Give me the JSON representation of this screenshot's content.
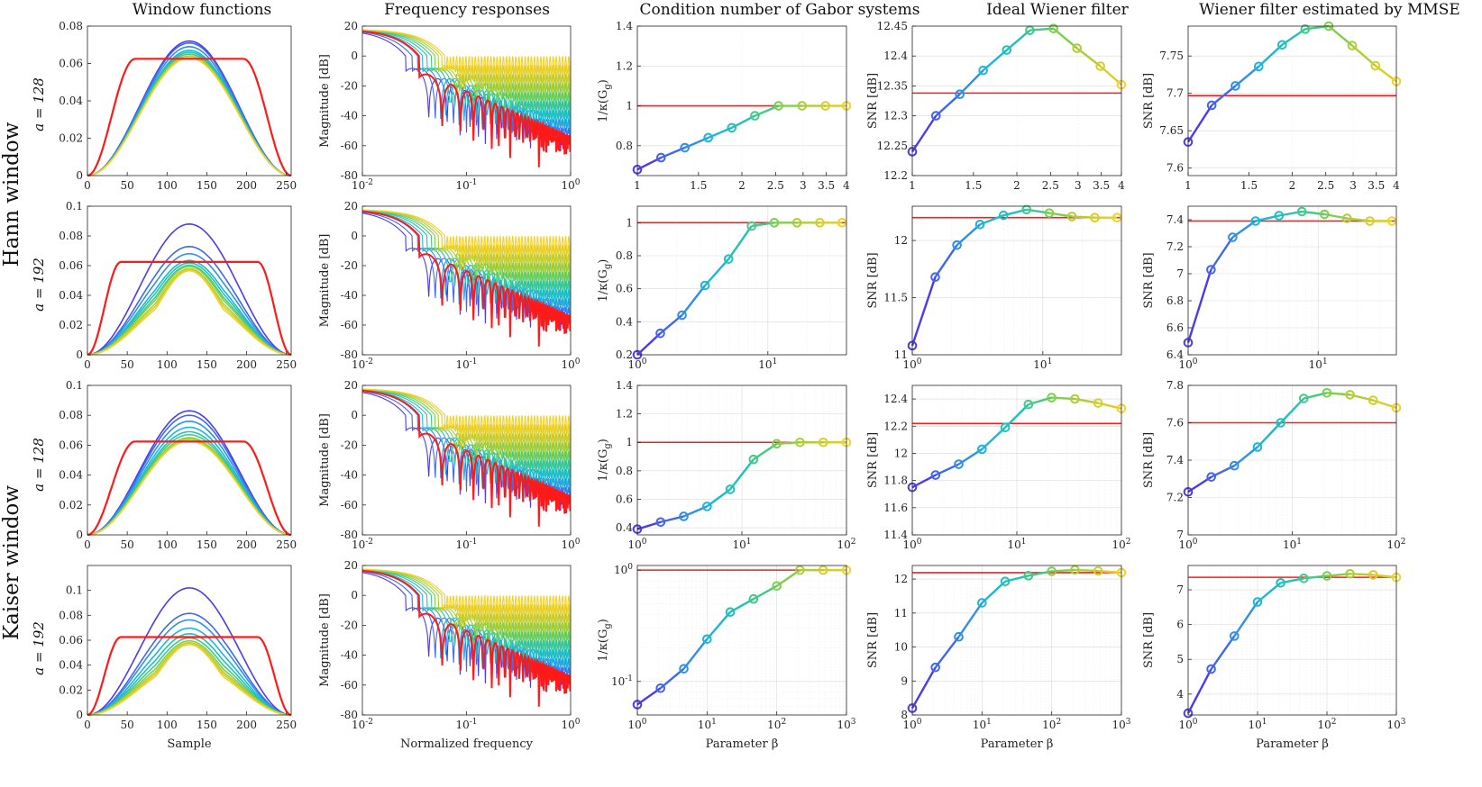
{
  "figure": {
    "column_titles": [
      "Window functions",
      "Frequency responses",
      "Condition number of Gabor systems",
      "Ideal Wiener filter",
      "Wiener filter estimated by MMSE"
    ],
    "group_labels": [
      "Hann window",
      "Kaiser window"
    ],
    "row_labels": [
      "a = 128",
      "a = 192",
      "a = 128",
      "a = 192"
    ],
    "xlabels": [
      "Sample",
      "Normalized frequency",
      "Parameter β",
      "Parameter β",
      "Parameter β"
    ],
    "ylabels": [
      "",
      "Magnitude [dB]",
      "1/κ(G_g)",
      "SNR [dB]",
      "SNR [dB]"
    ],
    "colors": {
      "red": "#ff1a1a",
      "gradient": [
        "#4b3ce8",
        "#3a7cf0",
        "#1ab8d8",
        "#27c6a6",
        "#7fcf4a",
        "#c9cc2e",
        "#f2d22a"
      ]
    }
  },
  "chart_data": [
    {
      "type": "line",
      "row": 0,
      "col": 0,
      "series_count": 10,
      "xlim": [
        0,
        256
      ],
      "ylim": [
        0,
        0.08
      ],
      "xticks": [
        0,
        50,
        100,
        150,
        200,
        250
      ],
      "yticks": [
        "0",
        "0.02",
        "0.04",
        "0.06",
        "0.08"
      ],
      "peak_values": [
        0.072,
        0.071,
        0.069,
        0.067,
        0.066,
        0.065,
        0.064,
        0.064,
        0.063,
        0.063
      ],
      "flat_value": 0.0625
    },
    {
      "type": "line",
      "row": 0,
      "col": 1,
      "xlim": [
        0.01,
        1
      ],
      "ylim": [
        -80,
        20
      ],
      "xticks": [
        "10^{-2}",
        "10^{-1}",
        "10^{0}"
      ],
      "yticks": [
        "-80",
        "-60",
        "-40",
        "-20",
        "0",
        "20"
      ]
    },
    {
      "type": "line",
      "row": 0,
      "col": 2,
      "xscale": "log",
      "xlim": [
        1,
        4
      ],
      "ylim": [
        0.65,
        1.4
      ],
      "xticks": [
        "1",
        "1.5",
        "2",
        "2.5",
        "3",
        "3.5",
        "4"
      ],
      "yticks": [
        "0.8",
        "1",
        "1.2",
        "1.4"
      ],
      "x": [
        1,
        1.17,
        1.37,
        1.6,
        1.87,
        2.18,
        2.55,
        2.98,
        3.48,
        4.0
      ],
      "y": [
        0.68,
        0.74,
        0.79,
        0.84,
        0.89,
        0.95,
        1.0,
        1.0,
        1.0,
        1.0
      ],
      "reference": 1.0
    },
    {
      "type": "line",
      "row": 0,
      "col": 3,
      "xscale": "log",
      "xlim": [
        1,
        4
      ],
      "ylim": [
        12.2,
        12.45
      ],
      "xticks": [
        "1",
        "1.5",
        "2",
        "2.5",
        "3",
        "3.5",
        "4"
      ],
      "yticks": [
        "12.2",
        "12.25",
        "12.3",
        "12.35",
        "12.4",
        "12.45"
      ],
      "x": [
        1,
        1.17,
        1.37,
        1.6,
        1.87,
        2.18,
        2.55,
        2.98,
        3.48,
        4.0
      ],
      "y": [
        12.24,
        12.3,
        12.336,
        12.376,
        12.41,
        12.443,
        12.446,
        12.413,
        12.383,
        12.352
      ],
      "reference": 12.338
    },
    {
      "type": "line",
      "row": 0,
      "col": 4,
      "xscale": "log",
      "xlim": [
        1,
        4
      ],
      "ylim": [
        7.59,
        7.79
      ],
      "xticks": [
        "1",
        "1.5",
        "2",
        "2.5",
        "3",
        "3.5",
        "4"
      ],
      "yticks": [
        "7.6",
        "7.65",
        "7.7",
        "7.75"
      ],
      "x": [
        1,
        1.17,
        1.37,
        1.6,
        1.87,
        2.18,
        2.55,
        2.98,
        3.48,
        4.0
      ],
      "y": [
        7.635,
        7.684,
        7.71,
        7.736,
        7.765,
        7.786,
        7.79,
        7.764,
        7.737,
        7.716
      ],
      "reference": 7.697
    },
    {
      "type": "line",
      "row": 1,
      "col": 0,
      "series_count": 10,
      "xlim": [
        0,
        256
      ],
      "ylim": [
        0,
        0.1
      ],
      "xticks": [
        0,
        50,
        100,
        150,
        200,
        250
      ],
      "yticks": [
        "0",
        "0.02",
        "0.04",
        "0.06",
        "0.08",
        "0.1"
      ],
      "peak_values": [
        0.088,
        0.074,
        0.07,
        0.066,
        0.065,
        0.064,
        0.064,
        0.063,
        0.063,
        0.063
      ],
      "flat_value": 0.0625
    },
    {
      "type": "line",
      "row": 1,
      "col": 1,
      "xlim": [
        0.01,
        1
      ],
      "ylim": [
        -80,
        20
      ],
      "xticks": [
        "10^{-2}",
        "10^{-1}",
        "10^{0}"
      ],
      "yticks": [
        "-80",
        "-60",
        "-40",
        "-20",
        "0",
        "20"
      ]
    },
    {
      "type": "line",
      "row": 1,
      "col": 2,
      "xscale": "log",
      "xlim": [
        1,
        40
      ],
      "ylim": [
        0.2,
        1.1
      ],
      "xticks": [
        "10^{0}",
        "10^{1}"
      ],
      "yticks": [
        "0.2",
        "0.4",
        "0.6",
        "0.8",
        "1"
      ],
      "x": [
        1,
        1.5,
        2.2,
        3.3,
        5,
        7.5,
        11.2,
        16.7,
        25,
        37
      ],
      "y": [
        0.2,
        0.33,
        0.44,
        0.62,
        0.78,
        0.98,
        1.0,
        1.0,
        1.0,
        1.0
      ],
      "reference": 1.0
    },
    {
      "type": "line",
      "row": 1,
      "col": 3,
      "xscale": "log",
      "xlim": [
        1,
        40
      ],
      "ylim": [
        11,
        12.3
      ],
      "xticks": [
        "10^{0}",
        "10^{1}"
      ],
      "yticks": [
        "11",
        "11.5",
        "12"
      ],
      "x": [
        1,
        1.5,
        2.2,
        3.3,
        5,
        7.5,
        11.2,
        16.7,
        25,
        37
      ],
      "y": [
        11.08,
        11.68,
        11.96,
        12.14,
        12.22,
        12.27,
        12.24,
        12.21,
        12.2,
        12.2
      ],
      "reference": 12.2
    },
    {
      "type": "line",
      "row": 1,
      "col": 4,
      "xscale": "log",
      "xlim": [
        1,
        40
      ],
      "ylim": [
        6.4,
        7.5
      ],
      "xticks": [
        "10^{0}",
        "10^{1}"
      ],
      "yticks": [
        "6.4",
        "6.6",
        "6.8",
        "7",
        "7.2",
        "7.4"
      ],
      "x": [
        1,
        1.5,
        2.2,
        3.3,
        5,
        7.5,
        11.2,
        16.7,
        25,
        37
      ],
      "y": [
        6.49,
        7.03,
        7.27,
        7.39,
        7.43,
        7.46,
        7.44,
        7.41,
        7.39,
        7.39
      ],
      "reference": 7.39
    },
    {
      "type": "line",
      "row": 2,
      "col": 0,
      "series_count": 10,
      "xlim": [
        0,
        256
      ],
      "ylim": [
        0,
        0.1
      ],
      "xticks": [
        0,
        50,
        100,
        150,
        200,
        250
      ],
      "yticks": [
        "0",
        "0.02",
        "0.04",
        "0.06",
        "0.08",
        "0.1"
      ],
      "peak_values": [
        0.083,
        0.08,
        0.076,
        0.072,
        0.069,
        0.067,
        0.065,
        0.064,
        0.063,
        0.063
      ],
      "flat_value": 0.0625
    },
    {
      "type": "line",
      "row": 2,
      "col": 1,
      "xlim": [
        0.01,
        1
      ],
      "ylim": [
        -80,
        20
      ],
      "xticks": [
        "10^{-2}",
        "10^{-1}",
        "10^{0}"
      ],
      "yticks": [
        "-80",
        "-60",
        "-40",
        "-20",
        "0",
        "20"
      ]
    },
    {
      "type": "line",
      "row": 2,
      "col": 2,
      "xscale": "log",
      "xlim": [
        1,
        100
      ],
      "ylim": [
        0.35,
        1.4
      ],
      "xticks": [
        "10^{0}",
        "10^{1}",
        "10^{2}"
      ],
      "yticks": [
        "0.4",
        "0.6",
        "0.8",
        "1",
        "1.2",
        "1.4"
      ],
      "x": [
        1,
        1.67,
        2.78,
        4.64,
        7.74,
        12.9,
        21.5,
        35.9,
        59.9,
        100
      ],
      "y": [
        0.39,
        0.44,
        0.48,
        0.55,
        0.67,
        0.88,
        0.99,
        1.0,
        1.0,
        1.0
      ],
      "reference": 1.0
    },
    {
      "type": "line",
      "row": 2,
      "col": 3,
      "xscale": "log",
      "xlim": [
        1,
        100
      ],
      "ylim": [
        11.4,
        12.5
      ],
      "xticks": [
        "10^{0}",
        "10^{1}",
        "10^{2}"
      ],
      "yticks": [
        "11.4",
        "11.6",
        "11.8",
        "12",
        "12.2",
        "12.4"
      ],
      "x": [
        1,
        1.67,
        2.78,
        4.64,
        7.74,
        12.9,
        21.5,
        35.9,
        59.9,
        100
      ],
      "y": [
        11.75,
        11.84,
        11.92,
        12.03,
        12.19,
        12.36,
        12.41,
        12.4,
        12.37,
        12.33
      ],
      "reference": 12.22
    },
    {
      "type": "line",
      "row": 2,
      "col": 4,
      "xscale": "log",
      "xlim": [
        1,
        100
      ],
      "ylim": [
        7,
        7.8
      ],
      "xticks": [
        "10^{0}",
        "10^{1}",
        "10^{2}"
      ],
      "yticks": [
        "7",
        "7.2",
        "7.4",
        "7.6",
        "7.8"
      ],
      "x": [
        1,
        1.67,
        2.78,
        4.64,
        7.74,
        12.9,
        21.5,
        35.9,
        59.9,
        100
      ],
      "y": [
        7.23,
        7.31,
        7.37,
        7.47,
        7.6,
        7.73,
        7.76,
        7.75,
        7.72,
        7.68
      ],
      "reference": 7.6
    },
    {
      "type": "line",
      "row": 3,
      "col": 0,
      "series_count": 10,
      "xlim": [
        0,
        256
      ],
      "ylim": [
        0,
        0.12
      ],
      "xticks": [
        0,
        50,
        100,
        150,
        200,
        250
      ],
      "yticks": [
        "0",
        "0.02",
        "0.04",
        "0.06",
        "0.08",
        "0.1"
      ],
      "peak_values": [
        0.102,
        0.083,
        0.079,
        0.073,
        0.069,
        0.066,
        0.064,
        0.063,
        0.063,
        0.063
      ],
      "flat_value": 0.0625
    },
    {
      "type": "line",
      "row": 3,
      "col": 1,
      "xlim": [
        0.01,
        1
      ],
      "ylim": [
        -80,
        20
      ],
      "xticks": [
        "10^{-2}",
        "10^{-1}",
        "10^{0}"
      ],
      "yticks": [
        "-80",
        "-60",
        "-40",
        "-20",
        "0",
        "20"
      ]
    },
    {
      "type": "line",
      "row": 3,
      "col": 2,
      "xscale": "log",
      "yscale": "log",
      "xlim": [
        1,
        1000
      ],
      "ylim": [
        0.05,
        1.1
      ],
      "xticks": [
        "10^{0}",
        "10^{1}",
        "10^{2}",
        "10^{3}"
      ],
      "yticks": [
        "10^{-1}",
        "10^{0}"
      ],
      "x": [
        1,
        2.15,
        4.64,
        10,
        21.5,
        46.4,
        100,
        215,
        464,
        1000
      ],
      "y": [
        0.062,
        0.087,
        0.13,
        0.24,
        0.42,
        0.55,
        0.72,
        1.0,
        1.0,
        1.0
      ],
      "reference": 1.0
    },
    {
      "type": "line",
      "row": 3,
      "col": 3,
      "xscale": "log",
      "xlim": [
        1,
        1000
      ],
      "ylim": [
        8,
        12.4
      ],
      "xticks": [
        "10^{0}",
        "10^{1}",
        "10^{2}",
        "10^{3}"
      ],
      "yticks": [
        "8",
        "9",
        "10",
        "11",
        "12"
      ],
      "x": [
        1,
        2.15,
        4.64,
        10,
        21.5,
        46.4,
        100,
        215,
        464,
        1000
      ],
      "y": [
        8.2,
        9.4,
        10.3,
        11.3,
        11.93,
        12.1,
        12.23,
        12.27,
        12.24,
        12.19
      ],
      "reference": 12.19
    },
    {
      "type": "line",
      "row": 3,
      "col": 4,
      "xscale": "log",
      "xlim": [
        1,
        1000
      ],
      "ylim": [
        3.4,
        7.7
      ],
      "xticks": [
        "10^{0}",
        "10^{1}",
        "10^{2}",
        "10^{3}"
      ],
      "yticks": [
        "4",
        "5",
        "6",
        "7"
      ],
      "x": [
        1,
        2.15,
        4.64,
        10,
        21.5,
        46.4,
        100,
        215,
        464,
        1000
      ],
      "y": [
        3.45,
        4.72,
        5.67,
        6.65,
        7.2,
        7.33,
        7.4,
        7.46,
        7.43,
        7.36
      ],
      "reference": 7.36
    }
  ]
}
